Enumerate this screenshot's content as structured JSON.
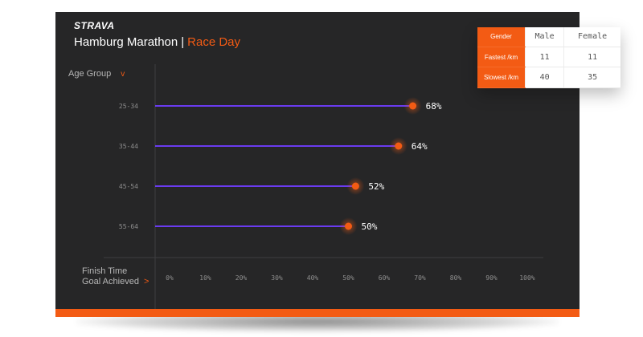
{
  "app": {
    "brand": "STRAVA"
  },
  "header": {
    "title": "Hamburg Marathon",
    "separator": "|",
    "subtitle": "Race Day"
  },
  "filter": {
    "label": "Age Group",
    "chevron": "v"
  },
  "footer": {
    "line1": "Finish Time",
    "line2": "Goal Achieved",
    "arrow": ">"
  },
  "colors": {
    "accent": "#f35b14",
    "series_line": "#6a3bf0",
    "background": "#262627"
  },
  "chart_data": {
    "type": "lollipop",
    "categories": [
      "25-34",
      "35-44",
      "45-54",
      "55-64"
    ],
    "values": [
      68,
      64,
      52,
      50
    ],
    "value_labels": [
      "68%",
      "64%",
      "52%",
      "50%"
    ],
    "x_ticks": [
      "0%",
      "10%",
      "20%",
      "30%",
      "40%",
      "50%",
      "60%",
      "70%",
      "80%",
      "90%",
      "100%"
    ],
    "xlim": [
      0,
      100
    ],
    "grid": false
  },
  "stats_table": {
    "header": [
      "Gender",
      "Male",
      "Female"
    ],
    "rows": [
      {
        "label": "Fastest /km",
        "male": "11",
        "female": "11"
      },
      {
        "label": "Slowest /km",
        "male": "40",
        "female": "35"
      }
    ]
  }
}
